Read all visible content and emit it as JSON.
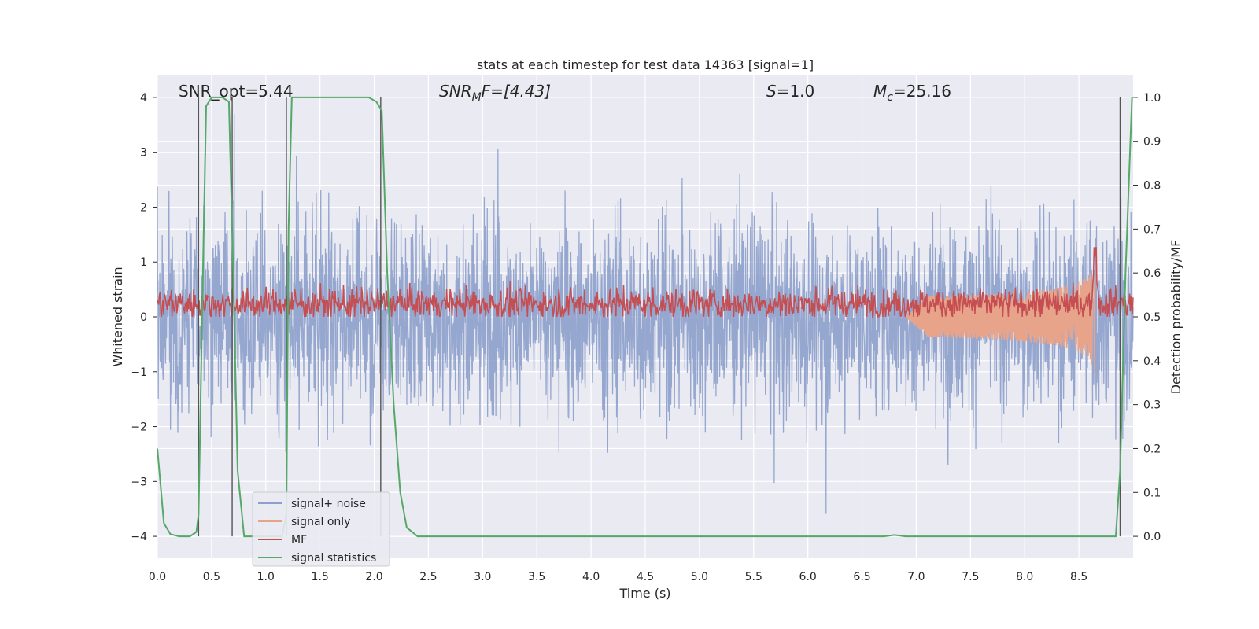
{
  "chart_data": {
    "type": "line",
    "title": "stats at each timestep for test data 14363 [signal=1]",
    "xlabel": "Time (s)",
    "ylabel_left": "Whitened strain",
    "ylabel_right": "Detection probability/MF",
    "xlim": [
      0.0,
      9.0
    ],
    "ylim_left": [
      -4.4,
      4.4
    ],
    "ylim_right": [
      -0.05,
      1.05
    ],
    "xticks": [
      0.0,
      0.5,
      1.0,
      1.5,
      2.0,
      2.5,
      3.0,
      3.5,
      4.0,
      4.5,
      5.0,
      5.5,
      6.0,
      6.5,
      7.0,
      7.5,
      8.0,
      8.5
    ],
    "xtick_labels": [
      "0.0",
      "0.5",
      "1.0",
      "1.5",
      "2.0",
      "2.5",
      "3.0",
      "3.5",
      "4.0",
      "4.5",
      "5.0",
      "5.5",
      "6.0",
      "6.5",
      "7.0",
      "7.5",
      "8.0",
      "8.5"
    ],
    "yticks_left": [
      -4,
      -3,
      -2,
      -1,
      0,
      1,
      2,
      3,
      4
    ],
    "ytick_labels_left": [
      "−4",
      "−3",
      "−2",
      "−1",
      "0",
      "1",
      "2",
      "3",
      "4"
    ],
    "yticks_right": [
      0.0,
      0.1,
      0.2,
      0.3,
      0.4,
      0.5,
      0.6,
      0.7,
      0.8,
      0.9,
      1.0
    ],
    "ytick_labels_right": [
      "0.0",
      "0.1",
      "0.2",
      "0.3",
      "0.4",
      "0.5",
      "0.6",
      "0.7",
      "0.8",
      "0.9",
      "1.0"
    ],
    "grid": true,
    "legend_position": "lower-left",
    "annotations": {
      "snr_opt": "SNR_opt=5.44",
      "snr_mf_prefix": "SNR",
      "snr_mf_sub": "M",
      "snr_mf_suffix": "F=[4.43]",
      "s_italic": "S",
      "s_value": "=1.0",
      "mc_italic": "M",
      "mc_sub": "c",
      "mc_value": "=25.16"
    },
    "vertical_markers": [
      0.38,
      0.69,
      1.19,
      2.06,
      8.88
    ],
    "series": [
      {
        "name": "signal+ noise",
        "color": "#8da0cb",
        "axis": "left",
        "style": "dense noise, approx. amplitude ±2.5, peaks to ±3.9",
        "amplitude_typical": 2.0,
        "amplitude_peak": 3.9
      },
      {
        "name": "signal only",
        "color": "#e8a48a",
        "axis": "left",
        "chirp_start": 6.9,
        "chirp_end": 8.65,
        "chirp_peak_amplitude": 1.1
      },
      {
        "name": "MF",
        "color": "#c44e52",
        "axis": "right",
        "baseline": 0.53,
        "range": [
          0.5,
          0.63
        ],
        "peak_time": 8.65,
        "peak_value": 0.67
      },
      {
        "name": "signal statistics",
        "color": "#55a868",
        "axis": "right",
        "points": [
          [
            0.0,
            0.2
          ],
          [
            0.06,
            0.03
          ],
          [
            0.12,
            0.005
          ],
          [
            0.2,
            0.0
          ],
          [
            0.3,
            0.0
          ],
          [
            0.36,
            0.01
          ],
          [
            0.38,
            0.05
          ],
          [
            0.42,
            0.6
          ],
          [
            0.45,
            0.98
          ],
          [
            0.5,
            1.0
          ],
          [
            0.6,
            1.0
          ],
          [
            0.66,
            0.99
          ],
          [
            0.7,
            0.6
          ],
          [
            0.74,
            0.15
          ],
          [
            0.8,
            0.0
          ],
          [
            1.15,
            0.0
          ],
          [
            1.19,
            0.05
          ],
          [
            1.21,
            0.7
          ],
          [
            1.24,
            1.0
          ],
          [
            1.4,
            1.0
          ],
          [
            1.95,
            1.0
          ],
          [
            2.02,
            0.99
          ],
          [
            2.07,
            0.97
          ],
          [
            2.12,
            0.6
          ],
          [
            2.18,
            0.3
          ],
          [
            2.24,
            0.1
          ],
          [
            2.3,
            0.02
          ],
          [
            2.4,
            0.0
          ],
          [
            6.7,
            0.0
          ],
          [
            6.8,
            0.003
          ],
          [
            6.9,
            0.0
          ],
          [
            8.84,
            0.0
          ],
          [
            8.88,
            0.15
          ],
          [
            8.93,
            0.6
          ],
          [
            8.99,
            1.0
          ]
        ]
      }
    ]
  }
}
